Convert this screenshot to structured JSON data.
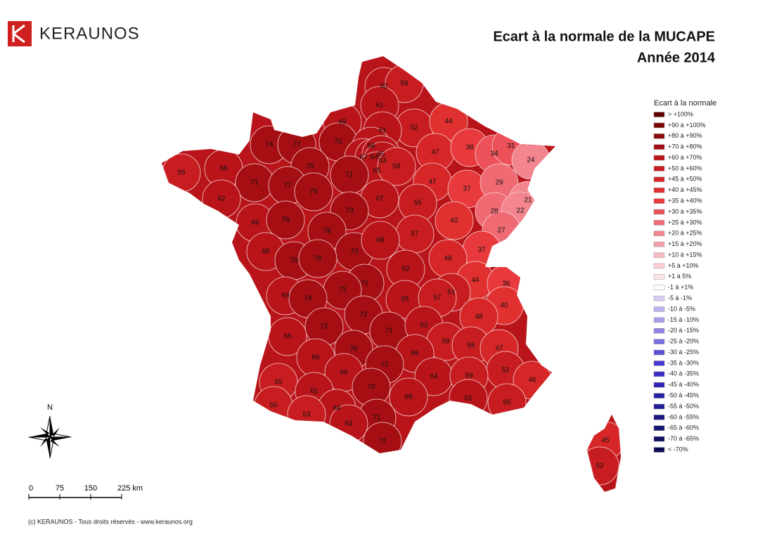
{
  "header": {
    "logo": "KERAUNOS",
    "title": "Ecart à la normale de la MUCAPE",
    "subtitle": "Année 2014"
  },
  "legend": {
    "title": "Ecart à la normale",
    "items": [
      {
        "label": "> +100%",
        "color": "#5c0000"
      },
      {
        "label": "+90 à +100%",
        "color": "#7a0505"
      },
      {
        "label": "+80 à +90%",
        "color": "#8e0a0a"
      },
      {
        "label": "+70 à +80%",
        "color": "#a50f14"
      },
      {
        "label": "+60 à +70%",
        "color": "#b8141a"
      },
      {
        "label": "+50 à +60%",
        "color": "#c81d20"
      },
      {
        "label": "+45 à +50%",
        "color": "#d62628"
      },
      {
        "label": "+40 à +45%",
        "color": "#e0302f"
      },
      {
        "label": "+35 à +40%",
        "color": "#e83a3c"
      },
      {
        "label": "+30 à +35%",
        "color": "#ec5058"
      },
      {
        "label": "+25 à +30%",
        "color": "#f06a74"
      },
      {
        "label": "+20 à +25%",
        "color": "#f3858e"
      },
      {
        "label": "+15 à +20%",
        "color": "#f5a0a8"
      },
      {
        "label": "+10 à +15%",
        "color": "#f8b8c0"
      },
      {
        "label": "+5 à +10%",
        "color": "#fad0d6"
      },
      {
        "label": "+1 à 5%",
        "color": "#fde6ea"
      },
      {
        "label": "-1 à +1%",
        "color": "#ffffff"
      },
      {
        "label": "-5 à -1%",
        "color": "#d8ccf5"
      },
      {
        "label": "-10 à -5%",
        "color": "#c0b4f0"
      },
      {
        "label": "-15 à -10%",
        "color": "#a89cec"
      },
      {
        "label": "-20 à -15%",
        "color": "#9084e6"
      },
      {
        "label": "-25 à -20%",
        "color": "#786ce0"
      },
      {
        "label": "-30 à -25%",
        "color": "#5c50d8"
      },
      {
        "label": "-35 à -30%",
        "color": "#4638d0"
      },
      {
        "label": "-40 à -35%",
        "color": "#3a2cc4"
      },
      {
        "label": "-45 à -40%",
        "color": "#3024b4"
      },
      {
        "label": "-50 à -45%",
        "color": "#2820a4"
      },
      {
        "label": "-55 à -50%",
        "color": "#201c94"
      },
      {
        "label": "-60 à -55%",
        "color": "#1a1884"
      },
      {
        "label": "-65 à -60%",
        "color": "#141474"
      },
      {
        "label": "-70 à -65%",
        "color": "#0e1064"
      },
      {
        "label": "< -70%",
        "color": "#0a0c54"
      }
    ]
  },
  "departments": {
    "values": [
      62,
      59,
      61,
      52,
      44,
      69,
      61,
      74,
      77,
      72,
      66,
      67,
      64,
      65,
      63,
      65,
      58,
      47,
      38,
      34,
      31,
      24,
      55,
      66,
      78,
      71,
      77,
      79,
      71,
      67,
      47,
      37,
      29,
      62,
      55,
      21,
      28,
      22,
      73,
      69,
      78,
      78,
      57,
      42,
      27,
      68,
      72,
      68,
      37,
      76,
      76,
      48,
      62,
      71,
      44,
      36,
      73,
      51,
      69,
      74,
      65,
      57,
      40,
      72,
      48,
      72,
      71,
      62,
      65,
      59,
      55,
      47,
      70,
      66,
      66,
      71,
      66,
      52,
      46,
      64,
      59,
      55,
      70,
      61,
      69,
      61,
      55,
      50,
      64,
      53,
      71,
      63,
      72,
      45,
      52
    ]
  },
  "scale": {
    "labels": [
      "0",
      "75",
      "150",
      "225 km"
    ]
  },
  "north": "N",
  "footer": "(c) KERAUNOS - Tous droits réservés - www.keraunos.org"
}
